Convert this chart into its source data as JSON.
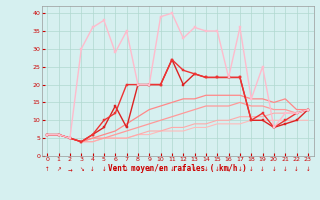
{
  "xlabel": "Vent moyen/en rafales ( km/h )",
  "bg_color": "#d6f0f0",
  "grid_color": "#b0d8d0",
  "x_ticks": [
    0,
    1,
    2,
    3,
    4,
    5,
    6,
    7,
    8,
    9,
    10,
    11,
    12,
    13,
    14,
    15,
    16,
    17,
    18,
    19,
    20,
    21,
    22,
    23
  ],
  "y_ticks": [
    0,
    5,
    10,
    15,
    20,
    25,
    30,
    35,
    40
  ],
  "xlim": [
    -0.5,
    23.5
  ],
  "ylim": [
    0,
    42
  ],
  "series": [
    {
      "x": [
        0,
        1,
        2,
        3,
        4,
        5,
        6,
        7,
        8,
        9,
        10,
        11,
        12,
        13,
        14,
        15,
        16,
        17,
        18,
        19,
        20,
        21,
        22,
        23
      ],
      "y": [
        6,
        6,
        5,
        4,
        4,
        5,
        5,
        5,
        6,
        6,
        7,
        7,
        7,
        8,
        8,
        9,
        9,
        9,
        10,
        10,
        10,
        10,
        10,
        10
      ],
      "color": "#ffbbbb",
      "lw": 0.8,
      "marker": null
    },
    {
      "x": [
        0,
        1,
        2,
        3,
        4,
        5,
        6,
        7,
        8,
        9,
        10,
        11,
        12,
        13,
        14,
        15,
        16,
        17,
        18,
        19,
        20,
        21,
        22,
        23
      ],
      "y": [
        6,
        6,
        5,
        4,
        4,
        5,
        5,
        5,
        6,
        7,
        7,
        8,
        8,
        9,
        9,
        10,
        10,
        11,
        11,
        11,
        12,
        12,
        12,
        13
      ],
      "color": "#ffaaaa",
      "lw": 0.8,
      "marker": null
    },
    {
      "x": [
        0,
        1,
        2,
        3,
        4,
        5,
        6,
        7,
        8,
        9,
        10,
        11,
        12,
        13,
        14,
        15,
        16,
        17,
        18,
        19,
        20,
        21,
        22,
        23
      ],
      "y": [
        6,
        6,
        5,
        4,
        5,
        5,
        6,
        7,
        8,
        9,
        10,
        11,
        12,
        13,
        14,
        14,
        14,
        15,
        14,
        14,
        13,
        13,
        12,
        13
      ],
      "color": "#ff9999",
      "lw": 0.9,
      "marker": null
    },
    {
      "x": [
        0,
        1,
        2,
        3,
        4,
        5,
        6,
        7,
        8,
        9,
        10,
        11,
        12,
        13,
        14,
        15,
        16,
        17,
        18,
        19,
        20,
        21,
        22,
        23
      ],
      "y": [
        6,
        6,
        5,
        4,
        5,
        6,
        7,
        9,
        11,
        13,
        14,
        15,
        16,
        16,
        17,
        17,
        17,
        17,
        16,
        16,
        15,
        16,
        13,
        13
      ],
      "color": "#ff8888",
      "lw": 0.9,
      "marker": null
    },
    {
      "x": [
        0,
        1,
        2,
        3,
        4,
        5,
        6,
        7,
        8,
        9,
        10,
        11,
        12,
        13,
        14,
        15,
        16,
        17,
        18,
        19,
        20,
        21,
        22,
        23
      ],
      "y": [
        6,
        6,
        5,
        4,
        6,
        8,
        14,
        8,
        20,
        20,
        20,
        27,
        20,
        23,
        22,
        22,
        22,
        22,
        10,
        10,
        8,
        9,
        10,
        13
      ],
      "color": "#dd2222",
      "lw": 1.0,
      "marker": "s",
      "ms": 2.0
    },
    {
      "x": [
        0,
        1,
        2,
        3,
        4,
        5,
        6,
        7,
        8,
        9,
        10,
        11,
        12,
        13,
        14,
        15,
        16,
        17,
        18,
        19,
        20,
        21,
        22,
        23
      ],
      "y": [
        6,
        6,
        5,
        4,
        6,
        10,
        12,
        20,
        20,
        20,
        20,
        27,
        24,
        23,
        22,
        22,
        22,
        22,
        10,
        12,
        8,
        10,
        12,
        13
      ],
      "color": "#ee3333",
      "lw": 1.0,
      "marker": "s",
      "ms": 2.0
    },
    {
      "x": [
        0,
        1,
        2,
        3,
        4,
        5,
        6,
        7,
        8,
        9,
        10,
        11,
        12,
        13,
        14,
        15,
        16,
        17,
        18,
        19,
        20,
        21,
        22,
        23
      ],
      "y": [
        6,
        6,
        5,
        30,
        36,
        38,
        29,
        35,
        20,
        20,
        39,
        40,
        33,
        36,
        35,
        35,
        22,
        36,
        16,
        25,
        8,
        12,
        12,
        13
      ],
      "color": "#ffbbcc",
      "lw": 1.0,
      "marker": "s",
      "ms": 2.0
    }
  ],
  "arrow_symbols": [
    "↑",
    "↗",
    "→",
    "↘",
    "↓",
    "↓",
    "↓",
    "↓",
    "↓",
    "↓",
    "↓",
    "↓",
    "↓",
    "↓",
    "↓",
    "↓",
    "↓",
    "↓",
    "↓",
    "↓",
    "↓",
    "↓",
    "↓",
    "↓"
  ]
}
